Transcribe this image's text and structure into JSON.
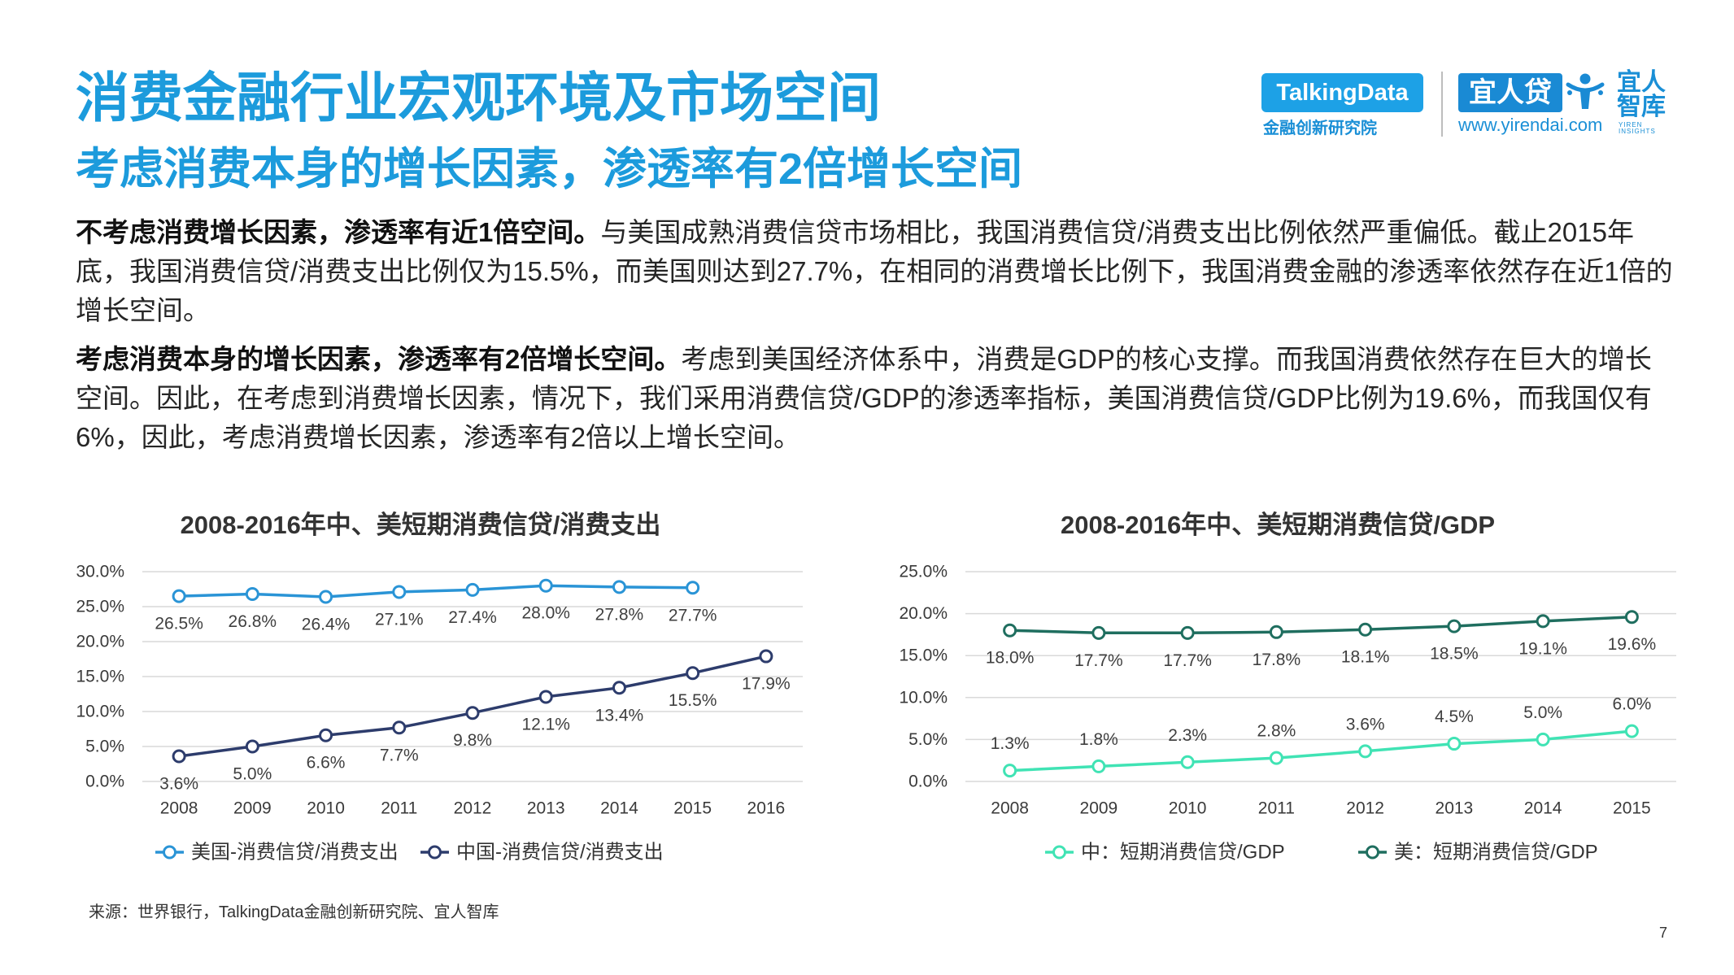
{
  "header": {
    "title": "消费金融行业宏观环境及市场空间",
    "subtitle": "考虑消费本身的增长因素，渗透率有2倍增长空间"
  },
  "logos": {
    "talkingdata": "TalkingData",
    "talkingdata_sub": "金融创新研究院",
    "yirendai": "宜人贷",
    "yirendai_url": "www.yirendai.com",
    "insights_line1": "宜人",
    "insights_line2": "智库",
    "insights_en1": "YIREN",
    "insights_en2": "INSIGHTS",
    "icon": "person-icon"
  },
  "colors": {
    "title": "#1c9bdc",
    "talkingdata_box": "#1da1e6",
    "yirendai_box": "#1a8ad4"
  },
  "paragraphs": [
    {
      "lead": "不考虑消费增长因素，渗透率有近1倍空间。",
      "body": "与美国成熟消费信贷市场相比，我国消费信贷/消费支出比例依然严重偏低。截止2015年底，我国消费信贷/消费支出比例仅为15.5%，而美国则达到27.7%，在相同的消费增长比例下，我国消费金融的渗透率依然存在近1倍的增长空间。"
    },
    {
      "lead": "考虑消费本身的增长因素，渗透率有2倍增长空间。",
      "body": "考虑到美国经济体系中，消费是GDP的核心支撑。而我国消费依然存在巨大的增长空间。因此，在考虑到消费增长因素，情况下，我们采用消费信贷/GDP的渗透率指标，美国消费信贷/GDP比例为19.6%，而我国仅有6%，因此，考虑消费增长因素，渗透率有2倍以上增长空间。"
    }
  ],
  "source": "来源：世界银行，TalkingData金融创新研究院、宜人智库",
  "page_number": "7",
  "chart_data": [
    {
      "type": "line",
      "title": "2008-2016年中、美短期消费信贷/消费支出",
      "categories": [
        "2008",
        "2009",
        "2010",
        "2011",
        "2012",
        "2013",
        "2014",
        "2015",
        "2016"
      ],
      "ylim": [
        0,
        30
      ],
      "yticks": [
        0,
        5,
        10,
        15,
        20,
        25,
        30
      ],
      "ytick_labels": [
        "0.0%",
        "5.0%",
        "10.0%",
        "15.0%",
        "20.0%",
        "25.0%",
        "30.0%"
      ],
      "grid": true,
      "legend": "bottom",
      "series": [
        {
          "name": "美国-消费信贷/消费支出",
          "color": "#2a94d6",
          "values": [
            26.5,
            26.8,
            26.4,
            27.1,
            27.4,
            28.0,
            27.8,
            27.7,
            null
          ],
          "data_labels": [
            "26.5%",
            "26.8%",
            "26.4%",
            "27.1%",
            "27.4%",
            "28.0%",
            "27.8%",
            "27.7%",
            null
          ],
          "data_label_position": "below"
        },
        {
          "name": "中国-消费信贷/消费支出",
          "color": "#2d3c6c",
          "values": [
            3.6,
            5.0,
            6.6,
            7.7,
            9.8,
            12.1,
            13.4,
            15.5,
            17.9
          ],
          "data_labels": [
            "3.6%",
            "5.0%",
            "6.6%",
            "7.7%",
            "9.8%",
            "12.1%",
            "13.4%",
            "15.5%",
            "17.9%"
          ],
          "data_label_position": "below"
        }
      ]
    },
    {
      "type": "line",
      "title": "2008-2016年中、美短期消费信贷/GDP",
      "categories": [
        "2008",
        "2009",
        "2010",
        "2011",
        "2012",
        "2013",
        "2014",
        "2015"
      ],
      "ylim": [
        0,
        25
      ],
      "yticks": [
        0,
        5,
        10,
        15,
        20,
        25
      ],
      "ytick_labels": [
        "0.0%",
        "5.0%",
        "10.0%",
        "15.0%",
        "20.0%",
        "25.0%"
      ],
      "grid": true,
      "legend": "bottom",
      "series": [
        {
          "name": "中：短期消费信贷/GDP",
          "color": "#40e3b4",
          "values": [
            1.3,
            1.8,
            2.3,
            2.8,
            3.6,
            4.5,
            5.0,
            6.0
          ],
          "data_labels": [
            "1.3%",
            "1.8%",
            "2.3%",
            "2.8%",
            "3.6%",
            "4.5%",
            "5.0%",
            "6.0%"
          ],
          "data_label_position": "above"
        },
        {
          "name": "美：短期消费信贷/GDP",
          "color": "#1f6e5f",
          "values": [
            18.0,
            17.7,
            17.7,
            17.8,
            18.1,
            18.5,
            19.1,
            19.6
          ],
          "data_labels": [
            "18.0%",
            "17.7%",
            "17.7%",
            "17.8%",
            "18.1%",
            "18.5%",
            "19.1%",
            "19.6%"
          ],
          "data_label_position": "below"
        }
      ]
    }
  ]
}
